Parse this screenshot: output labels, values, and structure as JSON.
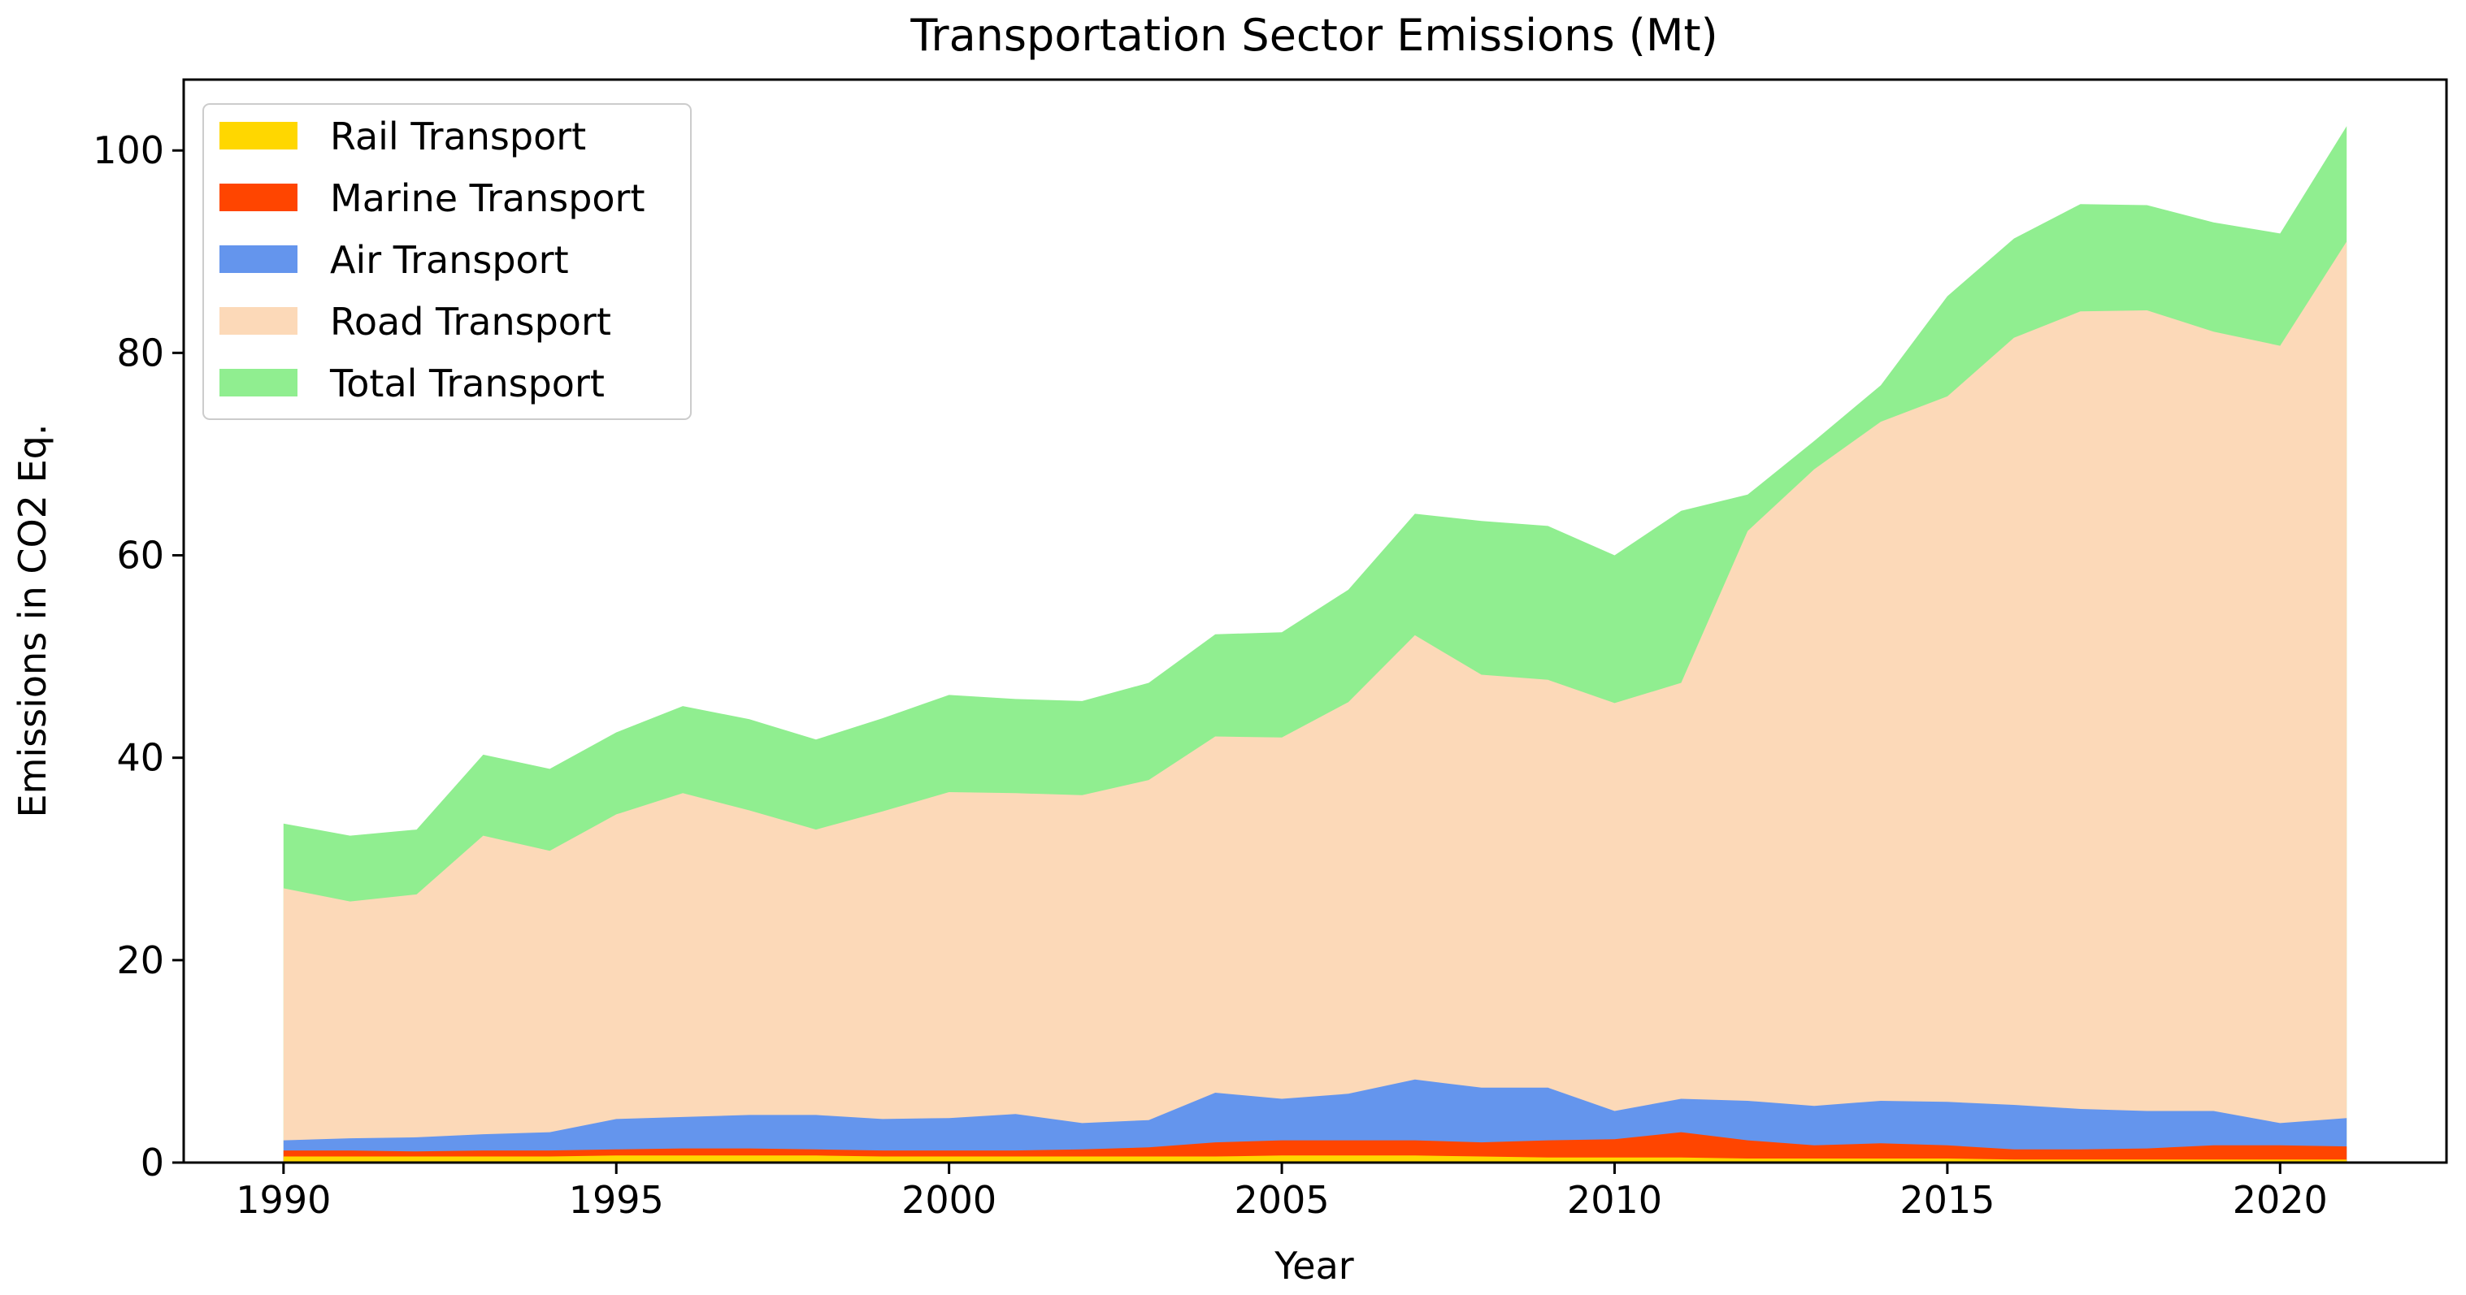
{
  "chart_data": {
    "type": "area",
    "title": "Transportation Sector Emissions (Mt)",
    "xlabel": "Year",
    "ylabel": "Emissions in CO2 Eq.",
    "xlim": [
      1988.5,
      2022.5
    ],
    "ylim": [
      0,
      107
    ],
    "x_ticks": [
      1990,
      1995,
      2000,
      2005,
      2010,
      2015,
      2020
    ],
    "y_ticks": [
      0,
      20,
      40,
      60,
      80,
      100
    ],
    "legend_position": "top-left",
    "grid": false,
    "stacked": false,
    "x": [
      1990,
      1991,
      1992,
      1993,
      1994,
      1995,
      1996,
      1997,
      1998,
      1999,
      2000,
      2001,
      2002,
      2003,
      2004,
      2005,
      2006,
      2007,
      2008,
      2009,
      2010,
      2011,
      2012,
      2013,
      2014,
      2015,
      2016,
      2017,
      2018,
      2019,
      2020,
      2021
    ],
    "series": [
      {
        "name": "Total Transport",
        "color": "#90ee90",
        "values": [
          33.5,
          32.3,
          32.9,
          40.3,
          38.9,
          42.5,
          45.1,
          43.8,
          41.8,
          43.9,
          46.2,
          45.8,
          45.6,
          47.4,
          52.2,
          52.4,
          56.6,
          64.1,
          63.4,
          62.9,
          60.0,
          64.4,
          66.0,
          71.3,
          76.8,
          85.6,
          91.3,
          94.7,
          94.6,
          92.9,
          91.8,
          102.4
        ]
      },
      {
        "name": "Road Transport",
        "color": "#fcd9b8",
        "values": [
          27.1,
          25.8,
          26.5,
          32.3,
          30.8,
          34.4,
          36.5,
          34.8,
          32.9,
          34.7,
          36.6,
          36.5,
          36.3,
          37.8,
          42.1,
          42.0,
          45.5,
          52.1,
          48.2,
          47.7,
          45.4,
          47.4,
          62.4,
          68.5,
          73.2,
          75.7,
          81.5,
          84.1,
          84.2,
          82.1,
          80.7,
          91.0
        ]
      },
      {
        "name": "Air Transport",
        "color": "#6495ed",
        "values": [
          2.2,
          2.4,
          2.5,
          2.8,
          3.0,
          4.3,
          4.5,
          4.7,
          4.7,
          4.3,
          4.4,
          4.8,
          3.9,
          4.2,
          6.9,
          6.3,
          6.8,
          8.2,
          7.4,
          7.4,
          5.1,
          6.3,
          6.1,
          5.6,
          6.1,
          6.0,
          5.7,
          5.3,
          5.1,
          5.1,
          3.9,
          4.4
        ]
      },
      {
        "name": "Marine Transport",
        "color": "#ff4500",
        "values": [
          1.2,
          1.2,
          1.1,
          1.2,
          1.2,
          1.3,
          1.4,
          1.4,
          1.3,
          1.2,
          1.2,
          1.2,
          1.3,
          1.5,
          2.0,
          2.2,
          2.2,
          2.2,
          2.0,
          2.2,
          2.3,
          3.0,
          2.2,
          1.7,
          1.9,
          1.7,
          1.3,
          1.3,
          1.4,
          1.7,
          1.7,
          1.6
        ]
      },
      {
        "name": "Rail Transport",
        "color": "#ffd700",
        "values": [
          0.6,
          0.6,
          0.6,
          0.6,
          0.6,
          0.7,
          0.7,
          0.7,
          0.7,
          0.6,
          0.6,
          0.6,
          0.6,
          0.6,
          0.6,
          0.7,
          0.7,
          0.7,
          0.6,
          0.5,
          0.5,
          0.5,
          0.4,
          0.4,
          0.4,
          0.4,
          0.3,
          0.3,
          0.3,
          0.3,
          0.3,
          0.3
        ]
      }
    ],
    "legend_order": [
      "Rail Transport",
      "Marine Transport",
      "Air Transport",
      "Road Transport",
      "Total Transport"
    ]
  }
}
